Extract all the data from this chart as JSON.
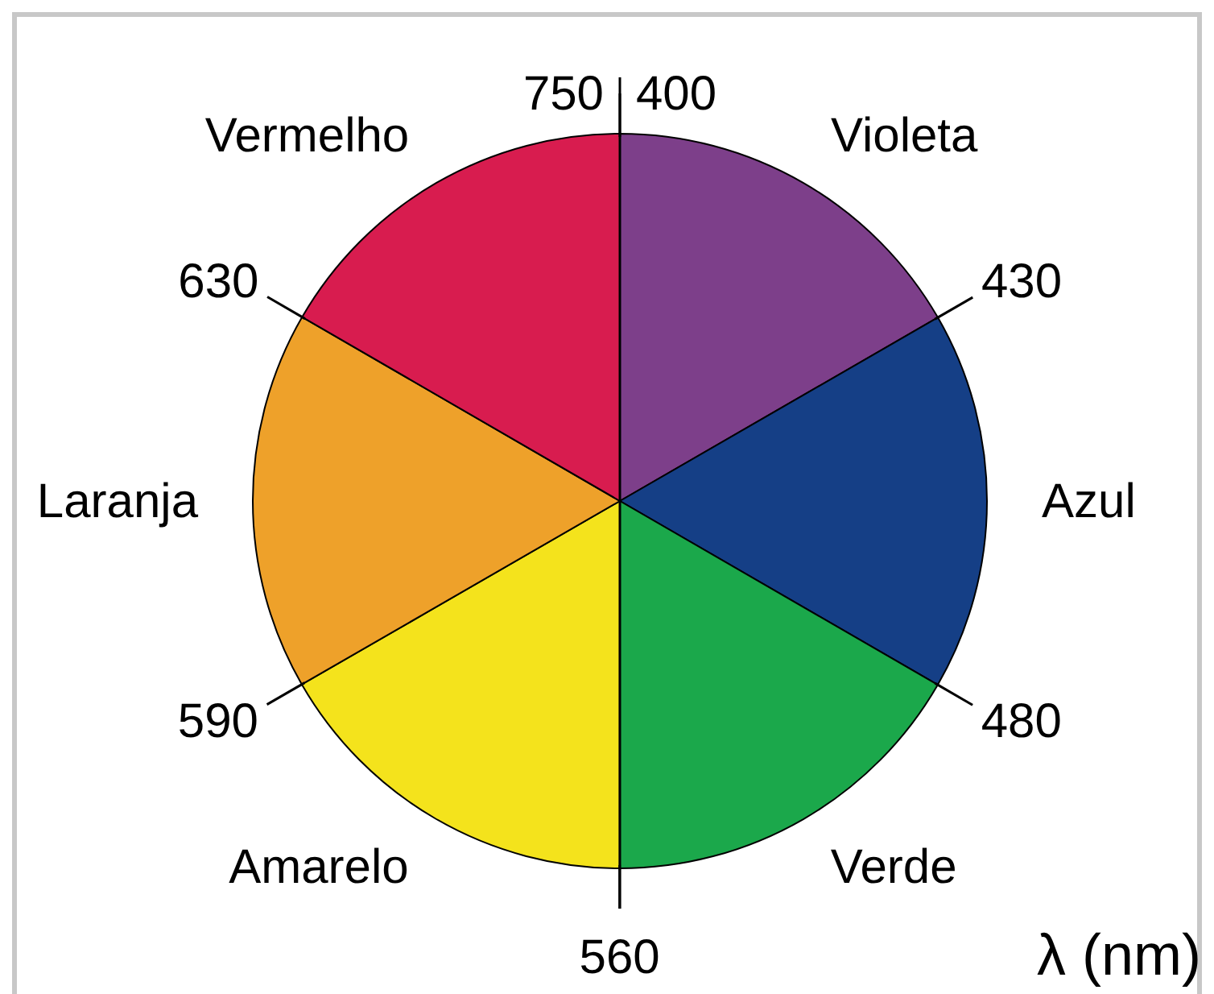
{
  "chart_data": {
    "type": "pie",
    "categories": [
      "Violeta",
      "Azul",
      "Verde",
      "Amarelo",
      "Laranja",
      "Vermelho"
    ],
    "values": [
      16.67,
      16.67,
      16.67,
      16.67,
      16.67,
      16.65
    ],
    "colors": [
      "#7d3f8a",
      "#153f86",
      "#1ba84b",
      "#f4e31c",
      "#eea12a",
      "#d81c4f"
    ],
    "xlabel": "λ (nm)",
    "annotations": [
      "750",
      "400",
      "430",
      "480",
      "560",
      "590",
      "630"
    ]
  }
}
